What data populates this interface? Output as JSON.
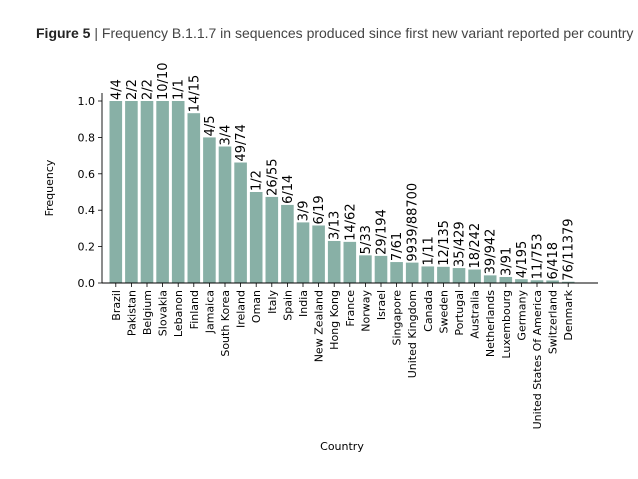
{
  "figure": {
    "label": "Figure 5",
    "separator": " | ",
    "caption": "Frequency B.1.1.7 in sequences produced since first new variant reported per country"
  },
  "colors": {
    "bar": "#88b0a6",
    "axis": "#000000"
  },
  "chart_data": {
    "type": "bar",
    "xlabel": "Country",
    "ylabel": "Frequency",
    "ylim": [
      0,
      1.0
    ],
    "yticks": [
      "0.0",
      "0.2",
      "0.4",
      "0.6",
      "0.8",
      "1.0"
    ],
    "categories": [
      "Brazil",
      "Pakistan",
      "Belgium",
      "Slovakia",
      "Lebanon",
      "Finland",
      "Jamaica",
      "South Korea",
      "Ireland",
      "Oman",
      "Italy",
      "Spain",
      "India",
      "New Zealand",
      "Hong Kong",
      "France",
      "Norway",
      "Israel",
      "Singapore",
      "United Kingdom",
      "Canada",
      "Sweden",
      "Portugal",
      "Australia",
      "Netherlands",
      "Luxembourg",
      "Germany",
      "United States Of America",
      "Switzerland",
      "Denmark"
    ],
    "values": [
      1.0,
      1.0,
      1.0,
      1.0,
      1.0,
      0.933,
      0.8,
      0.75,
      0.662,
      0.5,
      0.473,
      0.429,
      0.333,
      0.316,
      0.231,
      0.226,
      0.152,
      0.149,
      0.115,
      0.112,
      0.091,
      0.089,
      0.082,
      0.074,
      0.042,
      0.033,
      0.021,
      0.015,
      0.014,
      0.007
    ],
    "bar_labels": [
      "4/4",
      "2/2",
      "2/2",
      "10/10",
      "1/1",
      "14/15",
      "4/5",
      "3/4",
      "49/74",
      "1/2",
      "26/55",
      "6/14",
      "3/9",
      "6/19",
      "3/13",
      "14/62",
      "5/33",
      "29/194",
      "7/61",
      "9939/88700",
      "1/11",
      "12/135",
      "35/429",
      "18/242",
      "39/942",
      "3/91",
      "4/195",
      "11/753",
      "6/418",
      "76/11379"
    ]
  }
}
